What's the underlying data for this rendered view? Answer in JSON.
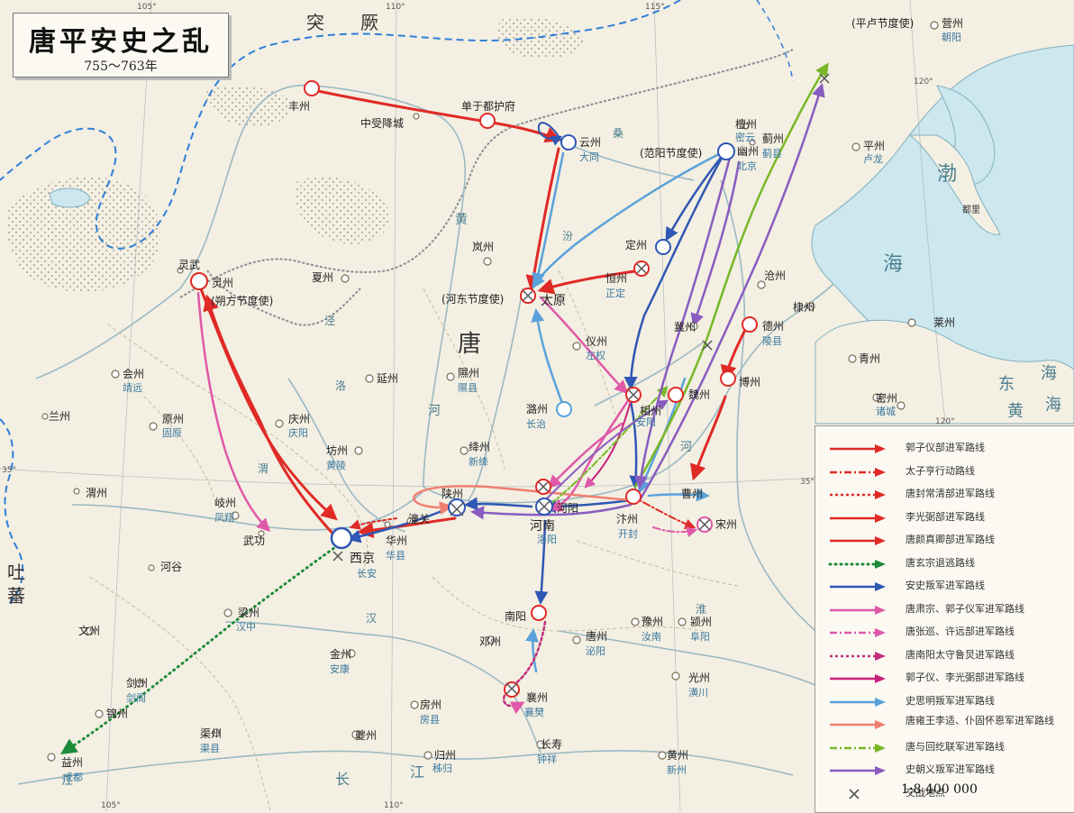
{
  "title": "唐平安史之乱",
  "subtitle": "755～763年",
  "scale": "1:8 400 000",
  "colors": {
    "sea": "#cde7ee",
    "land": "#f3efe2",
    "river": "#9ab9c4",
    "red": "#e02a26",
    "blue": "#2f57b4",
    "lightblue": "#5aa2da",
    "pink": "#e058a8",
    "purple": "#8a5cc0",
    "green": "#78b828",
    "border": "#2f7fd8"
  },
  "regions": [
    {
      "id": "tujue",
      "text": "突　　厥"
    },
    {
      "id": "tang",
      "text": "唐"
    },
    {
      "id": "tubo1",
      "text": "吐"
    },
    {
      "id": "tubo2",
      "text": "蕃"
    },
    {
      "id": "bohai1",
      "text": "渤"
    },
    {
      "id": "bohai2",
      "text": "海"
    },
    {
      "id": "donghai1",
      "text": "东"
    },
    {
      "id": "donghai2",
      "text": "海"
    },
    {
      "id": "huanghai1",
      "text": "黄"
    },
    {
      "id": "huanghai2",
      "text": "海"
    },
    {
      "id": "duli",
      "text": "都里"
    }
  ],
  "rivers": [
    {
      "id": "huanghe1",
      "text": "黄"
    },
    {
      "id": "huanghe2",
      "text": "河"
    },
    {
      "id": "huanghe3",
      "text": "河"
    },
    {
      "id": "changjiang1",
      "text": "长"
    },
    {
      "id": "changjiang2",
      "text": "江"
    },
    {
      "id": "changjiang3",
      "text": "江"
    },
    {
      "id": "han",
      "text": "汉"
    },
    {
      "id": "wei",
      "text": "渭"
    },
    {
      "id": "luo",
      "text": "洛"
    },
    {
      "id": "fen",
      "text": "汾"
    },
    {
      "id": "jing",
      "text": "泾"
    },
    {
      "id": "sang",
      "text": "桑"
    },
    {
      "id": "huai",
      "text": "淮"
    }
  ],
  "cities": [
    {
      "id": "fengzhou",
      "name": "丰州",
      "modern": ""
    },
    {
      "id": "shouxiang",
      "name": "中受降城",
      "modern": ""
    },
    {
      "id": "danyu",
      "name": "单于都护府",
      "modern": ""
    },
    {
      "id": "yunzhou",
      "name": "云州",
      "modern": "大同"
    },
    {
      "id": "youzhou",
      "name": "幽州",
      "modern": "北京"
    },
    {
      "id": "fanyang",
      "name": "(范阳节度使)",
      "modern": ""
    },
    {
      "id": "tanzhou",
      "name": "檀州",
      "modern": "密云"
    },
    {
      "id": "jizhou",
      "name": "蓟州",
      "modern": "蓟县"
    },
    {
      "id": "yingzhou",
      "name": "营州",
      "modern": "朝阳"
    },
    {
      "id": "pinglu",
      "name": "(平卢节度使)",
      "modern": ""
    },
    {
      "id": "pingzhou",
      "name": "平州",
      "modern": "卢龙"
    },
    {
      "id": "dingzhou",
      "name": "定州",
      "modern": ""
    },
    {
      "id": "hengzhou",
      "name": "恒州",
      "modern": "正定"
    },
    {
      "id": "taiyuan",
      "name": "太原",
      "modern": ""
    },
    {
      "id": "hedong",
      "name": "(河东节度使)",
      "modern": ""
    },
    {
      "id": "lanzhou",
      "name": "岚州",
      "modern": ""
    },
    {
      "id": "xiazhou",
      "name": "夏州",
      "modern": ""
    },
    {
      "id": "lingwu",
      "name": "灵武",
      "modern": ""
    },
    {
      "id": "lingzhou",
      "name": "灵州",
      "modern": ""
    },
    {
      "id": "shuofang",
      "name": "(朔方节度使)",
      "modern": ""
    },
    {
      "id": "cangzhou",
      "name": "沧州",
      "modern": ""
    },
    {
      "id": "dizhou",
      "name": "棣州",
      "modern": ""
    },
    {
      "id": "dezhou",
      "name": "德州",
      "modern": "陵县"
    },
    {
      "id": "jizhou2",
      "name": "冀州",
      "modern": ""
    },
    {
      "id": "yizhou",
      "name": "仪州",
      "modern": "左权"
    },
    {
      "id": "huizhou",
      "name": "会州",
      "modern": "靖远"
    },
    {
      "id": "yanzhou",
      "name": "延州",
      "modern": ""
    },
    {
      "id": "xizhou",
      "name": "隰州",
      "modern": "隰县"
    },
    {
      "id": "luzhou",
      "name": "潞州",
      "modern": "长治"
    },
    {
      "id": "xiangzhou",
      "name": "相州",
      "modern": "安阳"
    },
    {
      "id": "weizhou",
      "name": "魏州",
      "modern": ""
    },
    {
      "id": "bozhou",
      "name": "博州",
      "modern": ""
    },
    {
      "id": "qingzhou",
      "name": "青州",
      "modern": ""
    },
    {
      "id": "laizhou",
      "name": "莱州",
      "modern": ""
    },
    {
      "id": "mizhou",
      "name": "密州",
      "modern": "诸城"
    },
    {
      "id": "lanzhou2",
      "name": "兰州",
      "modern": ""
    },
    {
      "id": "yuanzhou",
      "name": "原州",
      "modern": "固原"
    },
    {
      "id": "qingzhou2",
      "name": "庆州",
      "modern": "庆阳"
    },
    {
      "id": "fangzhou",
      "name": "坊州",
      "modern": "黄陵"
    },
    {
      "id": "jiangzhou",
      "name": "绛州",
      "modern": "新绛"
    },
    {
      "id": "qizhou",
      "name": "岐州",
      "modern": "凤翔"
    },
    {
      "id": "wugong",
      "name": "武功",
      "modern": ""
    },
    {
      "id": "xijing",
      "name": "西京",
      "modern": "长安"
    },
    {
      "id": "huazhou",
      "name": "华州",
      "modern": "华县"
    },
    {
      "id": "tongguan",
      "name": "潼关",
      "modern": ""
    },
    {
      "id": "shanzhou",
      "name": "陕州",
      "modern": ""
    },
    {
      "id": "henan",
      "name": "河南",
      "modern": "洛阳"
    },
    {
      "id": "heyang",
      "name": "河阳",
      "modern": ""
    },
    {
      "id": "bianzhou",
      "name": "汴州",
      "modern": "开封"
    },
    {
      "id": "caozhou",
      "name": "曹州",
      "modern": ""
    },
    {
      "id": "songzhou",
      "name": "宋州",
      "modern": ""
    },
    {
      "id": "weizhou2",
      "name": "渭州",
      "modern": ""
    },
    {
      "id": "hegu",
      "name": "河谷",
      "modern": ""
    },
    {
      "id": "liangzhou",
      "name": "梁州",
      "modern": "汉中"
    },
    {
      "id": "wenzhou",
      "name": "文州",
      "modern": ""
    },
    {
      "id": "jianzhou",
      "name": "剑州",
      "modern": "剑阁"
    },
    {
      "id": "jinzhou2",
      "name": "锦州",
      "modern": ""
    },
    {
      "id": "jinzhou",
      "name": "金州",
      "modern": "安康"
    },
    {
      "id": "qunzhou",
      "name": "渠州",
      "modern": "渠县"
    },
    {
      "id": "yizhou2",
      "name": "益州",
      "modern": "成都"
    },
    {
      "id": "nanyang",
      "name": "南阳",
      "modern": ""
    },
    {
      "id": "dengzhou",
      "name": "邓州",
      "modern": ""
    },
    {
      "id": "tangzhou",
      "name": "唐州",
      "modern": "泌阳"
    },
    {
      "id": "yuzhou",
      "name": "豫州",
      "modern": "汝南"
    },
    {
      "id": "yingzhou2",
      "name": "颍州",
      "modern": "阜阳"
    },
    {
      "id": "xiangzhou2",
      "name": "襄州",
      "modern": "襄樊"
    },
    {
      "id": "fangzhou2",
      "name": "房州",
      "modern": "房县"
    },
    {
      "id": "guangzhou",
      "name": "光州",
      "modern": "潢川"
    },
    {
      "id": "kuizhou",
      "name": "夔州",
      "modern": ""
    },
    {
      "id": "guizhou",
      "name": "归州",
      "modern": "秭归"
    },
    {
      "id": "changshou",
      "name": "长寿",
      "modern": "钟祥"
    },
    {
      "id": "huangzhou",
      "name": "黄州",
      "modern": "新州"
    }
  ],
  "degrees": {
    "d105t": "105°",
    "d110t": "110°",
    "d115t": "115°",
    "d120t": "120°",
    "d105b": "105°",
    "d110b": "110°",
    "d120m": "120°",
    "d35l": "35°",
    "d35r": "35°"
  },
  "legend": [
    {
      "label": "郭子仪部进军路线",
      "color": "#e02a26",
      "style": "solid"
    },
    {
      "label": "太子亨行动路线",
      "color": "#e02a26",
      "style": "dashdot"
    },
    {
      "label": "唐封常清部进军路线",
      "color": "#e02a26",
      "style": "dotted"
    },
    {
      "label": "李光弼部进军路线",
      "color": "#e02a26",
      "style": "solid2"
    },
    {
      "label": "唐颜真卿部进军路线",
      "color": "#e02a26",
      "style": "solid3"
    },
    {
      "label": "唐玄宗退逃路线",
      "color": "#1e8a3a",
      "style": "dots"
    },
    {
      "label": "安史叛军进军路线",
      "color": "#2f57b4",
      "style": "solid"
    },
    {
      "label": "唐肃宗、郭子仪军进军路线",
      "color": "#e058a8",
      "style": "solid"
    },
    {
      "label": "唐张巡、许远部进军路线",
      "color": "#e058a8",
      "style": "dashdot"
    },
    {
      "label": "唐南阳太守鲁炅进军路线",
      "color": "#c0307a",
      "style": "dotted"
    },
    {
      "label": "郭子仪、李光弼部进军路线",
      "color": "#c8207a",
      "style": "solid"
    },
    {
      "label": "史思明叛军进军路线",
      "color": "#5aa2da",
      "style": "solid"
    },
    {
      "label": "唐雍王李适、仆固怀恩军进军路线",
      "color": "#f08070",
      "style": "solid"
    },
    {
      "label": "唐与回纥联军进军路线",
      "color": "#78b828",
      "style": "dashdot"
    },
    {
      "label": "史朝义叛军进军路线",
      "color": "#8a5cc0",
      "style": "solid"
    },
    {
      "label": "交战地点",
      "color": "#555",
      "style": "cross"
    }
  ]
}
